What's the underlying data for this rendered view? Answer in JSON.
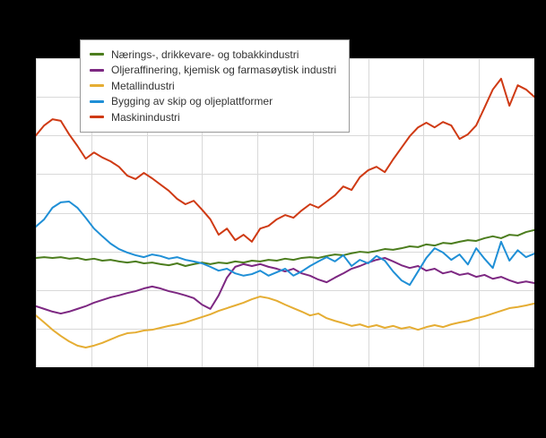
{
  "chart_data": {
    "type": "line",
    "title": "",
    "background": "#000000",
    "plot_background": "#ffffff",
    "gridline_color": "#d9d9d9",
    "grid": true,
    "legend_position": "top-left-inside",
    "ylim": [
      60,
      140
    ],
    "y_gridline_step": 10,
    "x_gridline_count": 10,
    "n_points": 61,
    "series": [
      {
        "name": "Nærings-, drikkevare- og tobakkindustri",
        "color": "#4c7d1e",
        "values": [
          88.3,
          88.5,
          88.3,
          88.5,
          88.1,
          88.3,
          87.8,
          88.1,
          87.6,
          87.8,
          87.4,
          87.1,
          87.4,
          86.9,
          87.1,
          86.7,
          86.4,
          86.9,
          86.2,
          86.7,
          87.1,
          86.7,
          87.1,
          86.9,
          87.4,
          87.1,
          87.6,
          87.4,
          87.8,
          87.6,
          88.1,
          87.8,
          88.3,
          88.5,
          88.3,
          88.8,
          89.2,
          89.0,
          89.5,
          89.9,
          89.7,
          90.1,
          90.6,
          90.4,
          90.8,
          91.3,
          91.1,
          91.8,
          91.5,
          92.2,
          92.0,
          92.5,
          92.9,
          92.7,
          93.4,
          93.9,
          93.4,
          94.3,
          94.1,
          95.0,
          95.5
        ]
      },
      {
        "name": "Oljeraffinering, kjemisk og farmasøytisk industri",
        "color": "#7d2882",
        "values": [
          75.8,
          75.1,
          74.4,
          73.9,
          74.4,
          75.1,
          75.8,
          76.7,
          77.4,
          78.1,
          78.6,
          79.2,
          79.7,
          80.4,
          80.9,
          80.4,
          79.7,
          79.2,
          78.6,
          77.9,
          76.2,
          75.1,
          78.6,
          83.2,
          86.0,
          86.7,
          86.2,
          86.7,
          86.0,
          85.5,
          84.8,
          85.5,
          84.3,
          83.7,
          82.7,
          82.0,
          83.2,
          84.3,
          85.5,
          86.2,
          87.1,
          87.8,
          88.3,
          87.4,
          86.4,
          85.7,
          86.2,
          85.0,
          85.5,
          84.3,
          84.8,
          83.9,
          84.3,
          83.4,
          83.9,
          82.9,
          83.4,
          82.5,
          81.8,
          82.2,
          81.8
        ]
      },
      {
        "name": "Metallindustri",
        "color": "#e5ad33",
        "values": [
          73.4,
          71.6,
          69.7,
          68.1,
          66.7,
          65.6,
          65.1,
          65.6,
          66.3,
          67.2,
          68.1,
          68.8,
          69.0,
          69.5,
          69.7,
          70.2,
          70.7,
          71.1,
          71.6,
          72.3,
          73.0,
          73.7,
          74.6,
          75.3,
          76.0,
          76.7,
          77.6,
          78.3,
          77.9,
          77.2,
          76.2,
          75.3,
          74.4,
          73.4,
          73.9,
          72.7,
          72.0,
          71.4,
          70.7,
          71.1,
          70.4,
          70.9,
          70.2,
          70.7,
          70.0,
          70.4,
          69.7,
          70.4,
          70.9,
          70.4,
          71.1,
          71.6,
          72.0,
          72.7,
          73.2,
          73.9,
          74.6,
          75.3,
          75.6,
          76.0,
          76.5
        ]
      },
      {
        "name": "Bygging av skip og oljeplattformer",
        "color": "#1f8fd6",
        "values": [
          96.4,
          98.3,
          101.3,
          102.7,
          102.9,
          101.3,
          98.7,
          95.9,
          93.9,
          92.0,
          90.6,
          89.7,
          89.0,
          88.5,
          89.2,
          88.8,
          88.1,
          88.5,
          87.8,
          87.4,
          86.9,
          86.0,
          85.0,
          85.5,
          84.3,
          83.7,
          84.1,
          85.0,
          83.7,
          84.6,
          85.5,
          83.7,
          84.8,
          86.2,
          87.4,
          88.5,
          87.4,
          89.0,
          86.2,
          87.8,
          86.9,
          88.8,
          87.6,
          84.8,
          82.5,
          81.3,
          84.8,
          88.3,
          90.8,
          89.7,
          87.8,
          89.2,
          86.6,
          90.8,
          88.1,
          85.7,
          92.5,
          87.6,
          90.3,
          88.5,
          89.4
        ]
      },
      {
        "name": "Maskinindustri",
        "color": "#cf3a14",
        "values": [
          120.0,
          122.6,
          124.2,
          123.8,
          120.3,
          117.3,
          114.0,
          115.6,
          114.3,
          113.3,
          111.9,
          109.6,
          108.7,
          110.3,
          108.9,
          107.3,
          105.7,
          103.6,
          102.2,
          103.1,
          100.8,
          98.3,
          94.3,
          95.9,
          92.9,
          94.3,
          92.5,
          95.9,
          96.6,
          98.3,
          99.4,
          98.7,
          100.6,
          102.2,
          101.3,
          102.9,
          104.5,
          106.8,
          105.9,
          109.2,
          111.0,
          111.9,
          110.5,
          113.8,
          116.8,
          119.8,
          122.1,
          123.3,
          122.1,
          123.5,
          122.6,
          119.1,
          120.3,
          122.6,
          127.2,
          131.9,
          134.7,
          127.7,
          133.0,
          131.9,
          130.0
        ]
      }
    ]
  }
}
